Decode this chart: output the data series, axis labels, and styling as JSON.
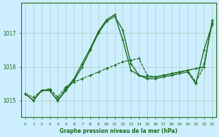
{
  "title": "Graphe pression niveau de la mer (hPa)",
  "bg_color": "#cceeff",
  "grid_color": "#aaccbb",
  "line_color": "#1a6b1a",
  "x_labels": [
    "0",
    "1",
    "2",
    "3",
    "4",
    "5",
    "6",
    "7",
    "8",
    "9",
    "10",
    "11",
    "12",
    "13",
    "14",
    "15",
    "16",
    "17",
    "18",
    "19",
    "20",
    "21",
    "22",
    "23"
  ],
  "ylim": [
    1014.5,
    1017.9
  ],
  "yticks": [
    1015,
    1016,
    1017
  ],
  "series": [
    {
      "data": [
        1015.2,
        1015.0,
        1015.3,
        1015.3,
        1015.0,
        1015.3,
        1015.6,
        1016.0,
        1016.5,
        1017.0,
        1017.35,
        1017.5,
        1017.1,
        1016.1,
        1015.75,
        1015.7,
        1015.7,
        1015.75,
        1015.8,
        1015.85,
        1015.9,
        1015.95,
        1016.0,
        1017.3
      ],
      "style": "-",
      "lw": 1.0
    },
    {
      "data": [
        1015.2,
        1015.0,
        1015.3,
        1015.3,
        1015.0,
        1015.35,
        1015.65,
        1016.1,
        1016.55,
        1017.05,
        1017.4,
        1017.55,
        1016.8,
        1015.9,
        1015.75,
        1015.65,
        1015.65,
        1015.7,
        1015.75,
        1015.8,
        1015.85,
        1015.5,
        1016.5,
        1017.25
      ],
      "style": "-",
      "lw": 1.0
    },
    {
      "data": [
        1015.2,
        1015.1,
        1015.3,
        1015.35,
        1015.1,
        1015.4,
        1015.55,
        1015.65,
        1015.75,
        1015.85,
        1015.95,
        1016.05,
        1016.15,
        1016.2,
        1016.25,
        1015.75,
        1015.7,
        1015.75,
        1015.8,
        1015.85,
        1015.9,
        1015.55,
        1016.0,
        1017.35
      ],
      "style": "--",
      "lw": 0.8
    },
    {
      "data": [
        1015.2,
        1015.1,
        1015.3,
        1015.35,
        1015.1,
        1015.4,
        1015.55,
        1015.65,
        1015.75,
        1015.85,
        1015.95,
        1016.05,
        1016.15,
        1016.2,
        1016.25,
        1015.75,
        1015.7,
        1015.75,
        1015.8,
        1015.85,
        1015.9,
        1015.55,
        1016.1,
        1017.4
      ],
      "style": ":",
      "lw": 0.8
    }
  ]
}
